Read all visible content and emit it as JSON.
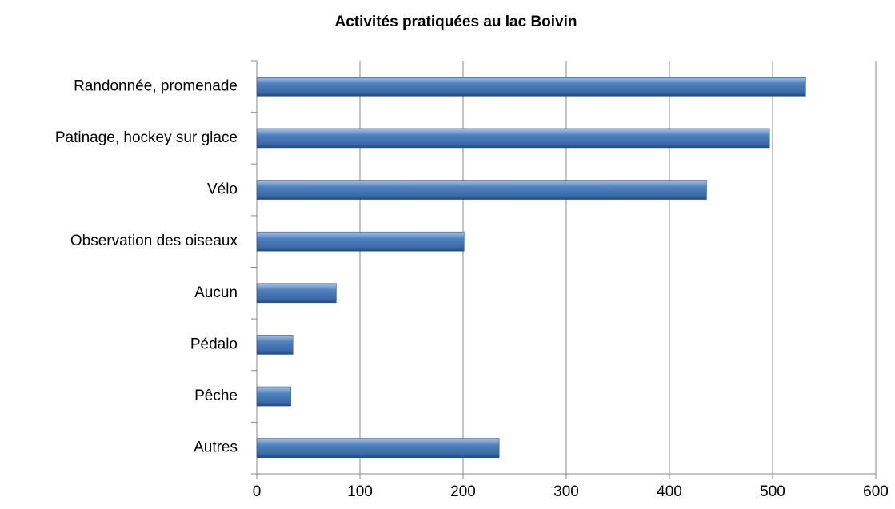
{
  "chart_data": {
    "type": "bar",
    "orientation": "horizontal",
    "title": "Activités pratiquées au lac Boivin",
    "categories": [
      "Randonnée, promenade",
      "Patinage, hockey sur glace",
      "Vélo",
      "Observation des oiseaux",
      "Aucun",
      "Pédalo",
      "Pêche",
      "Autres"
    ],
    "values": [
      532,
      497,
      436,
      201,
      77,
      35,
      33,
      235
    ],
    "color": "#4f81bd",
    "xlim": [
      0,
      600
    ],
    "xticks": [
      0,
      100,
      200,
      300,
      400,
      500,
      600
    ],
    "grid": true
  }
}
